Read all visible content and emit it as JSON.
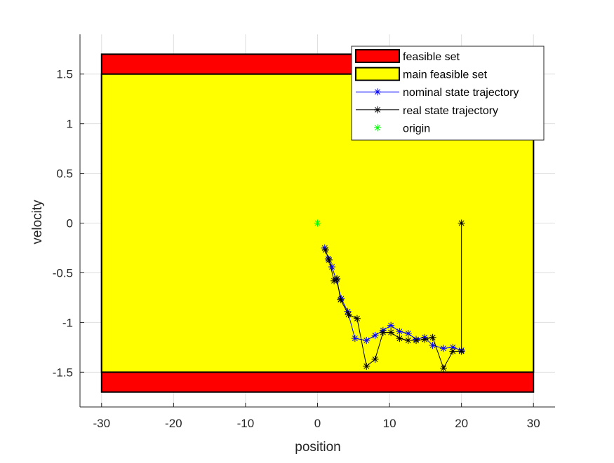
{
  "chart_data": {
    "type": "line",
    "xlabel": "position",
    "ylabel": "velocity",
    "xlim": [
      -33,
      33
    ],
    "ylim": [
      -1.85,
      1.9
    ],
    "xticks": [
      -30,
      -20,
      -10,
      0,
      10,
      20,
      30
    ],
    "xtick_labels": [
      "-30",
      "-20",
      "-10",
      "0",
      "10",
      "20",
      "30"
    ],
    "yticks": [
      -1.5,
      -1,
      -0.5,
      0,
      0.5,
      1,
      1.5
    ],
    "ytick_labels": [
      "-1.5",
      "-1",
      "-0.5",
      "0",
      "0.5",
      "1",
      "1.5"
    ],
    "grid": true,
    "legend_position": "top-right",
    "regions": [
      {
        "name": "feasible set",
        "color": "#ff0000",
        "x": [
          -30,
          30
        ],
        "y": [
          -1.7,
          1.7
        ]
      },
      {
        "name": "main feasible set",
        "color": "#ffff00",
        "x": [
          -30,
          30
        ],
        "y": [
          -1.5,
          1.5
        ]
      }
    ],
    "series": [
      {
        "name": "nominal state trajectory",
        "color": "#0000ff",
        "marker": "*",
        "x": [
          20,
          18.8,
          17.5,
          16,
          14.9,
          13.7,
          12.6,
          11.4,
          10.2,
          9.1,
          8,
          6.8,
          5.2,
          4.2,
          3.3,
          2.6,
          2.0,
          1.5,
          1.0
        ],
        "y": [
          -1.28,
          -1.25,
          -1.26,
          -1.23,
          -1.15,
          -1.17,
          -1.11,
          -1.09,
          -1.03,
          -1.08,
          -1.13,
          -1.18,
          -1.16,
          -0.89,
          -0.76,
          -0.57,
          -0.44,
          -0.36,
          -0.25
        ]
      },
      {
        "name": "real state trajectory",
        "color": "#000000",
        "marker": "*",
        "x": [
          20,
          20,
          18.8,
          17.5,
          16,
          14.9,
          13.7,
          12.6,
          11.4,
          10.2,
          9.1,
          8,
          6.8,
          5.5,
          4.3,
          3.2,
          2.7,
          2.3,
          1.6,
          1.1
        ],
        "y": [
          0,
          -1.29,
          -1.29,
          -1.46,
          -1.15,
          -1.17,
          -1.18,
          -1.18,
          -1.16,
          -1.1,
          -1.1,
          -1.37,
          -1.44,
          -0.96,
          -0.92,
          -0.77,
          -0.56,
          -0.58,
          -0.37,
          -0.27
        ]
      },
      {
        "name": "origin",
        "color": "#00ff00",
        "marker": "*",
        "x": [
          0
        ],
        "y": [
          0
        ]
      }
    ]
  }
}
